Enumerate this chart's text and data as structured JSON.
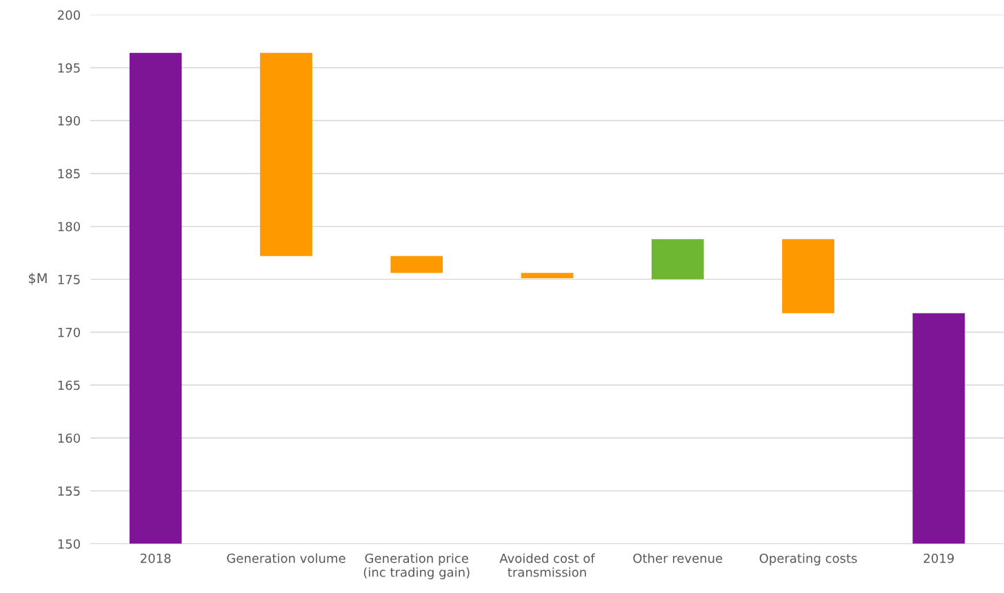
{
  "chart_data": {
    "type": "bar",
    "ylabel": "$M",
    "categories": [
      "2018",
      "Generation volume",
      "Generation price\n(inc trading gain)",
      "Avoided cost of\ntransmission",
      "Other revenue",
      "Operating costs",
      "2019"
    ],
    "values": [
      46.4,
      19.2,
      1.6,
      0.5,
      3.8,
      7.0,
      21.8
    ],
    "base": [
      150,
      177.2,
      175.6,
      175.1,
      175.0,
      171.8,
      150
    ],
    "colors": [
      "#7e1496",
      "#ff9900",
      "#ff9900",
      "#ff9900",
      "#6db733",
      "#ff9900",
      "#7e1496"
    ],
    "ylim": [
      150,
      200
    ],
    "yticks": [
      150,
      155,
      160,
      165,
      170,
      175,
      180,
      185,
      190,
      195,
      200
    ],
    "grid": "y",
    "legend": false
  }
}
